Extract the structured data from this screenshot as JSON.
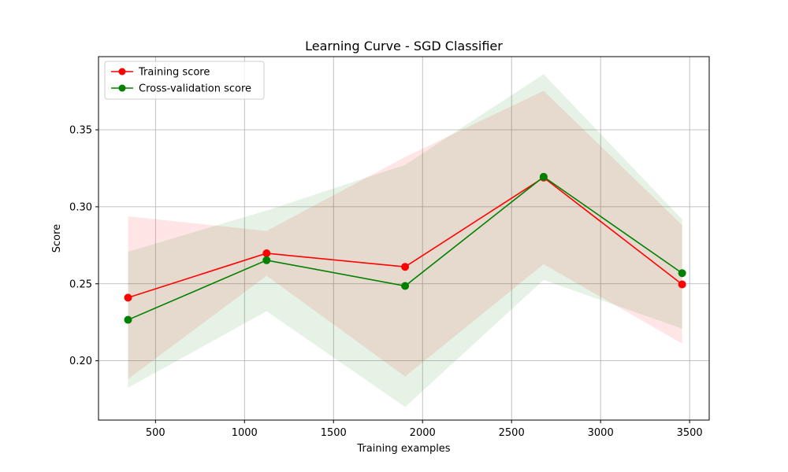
{
  "chart_data": {
    "type": "line",
    "title": "Learning Curve - SGD Classifier",
    "xlabel": "Training examples",
    "ylabel": "Score",
    "xlim": [
      180,
      3610
    ],
    "ylim": [
      0.1615,
      0.3975
    ],
    "xticks": [
      500,
      1000,
      1500,
      2000,
      2500,
      3000,
      3500
    ],
    "yticks": [
      0.2,
      0.25,
      0.3,
      0.35
    ],
    "xtick_labels": [
      "500",
      "1000",
      "1500",
      "2000",
      "2500",
      "3000",
      "3500"
    ],
    "ytick_labels": [
      "0.20",
      "0.25",
      "0.30",
      "0.35"
    ],
    "grid": true,
    "legend_position": "upper-left",
    "x": [
      346,
      1124,
      1902,
      2680,
      3458
    ],
    "series": [
      {
        "name": "Training score",
        "color": "#ff0000",
        "band_color": "#ff0000",
        "band_opacity": 0.1,
        "values": [
          0.241,
          0.2698,
          0.261,
          0.319,
          0.2496
        ],
        "upper": [
          0.2938,
          0.2843,
          0.3323,
          0.3753,
          0.2881
        ],
        "lower": [
          0.1882,
          0.2552,
          0.1898,
          0.2627,
          0.2112
        ]
      },
      {
        "name": "Cross-validation score",
        "color": "#008000",
        "band_color": "#008000",
        "band_opacity": 0.1,
        "values": [
          0.2266,
          0.2653,
          0.2486,
          0.3195,
          0.2569
        ],
        "upper": [
          0.2708,
          0.2976,
          0.3272,
          0.3861,
          0.2918
        ],
        "lower": [
          0.1825,
          0.2322,
          0.17,
          0.2525,
          0.2209
        ]
      }
    ]
  }
}
